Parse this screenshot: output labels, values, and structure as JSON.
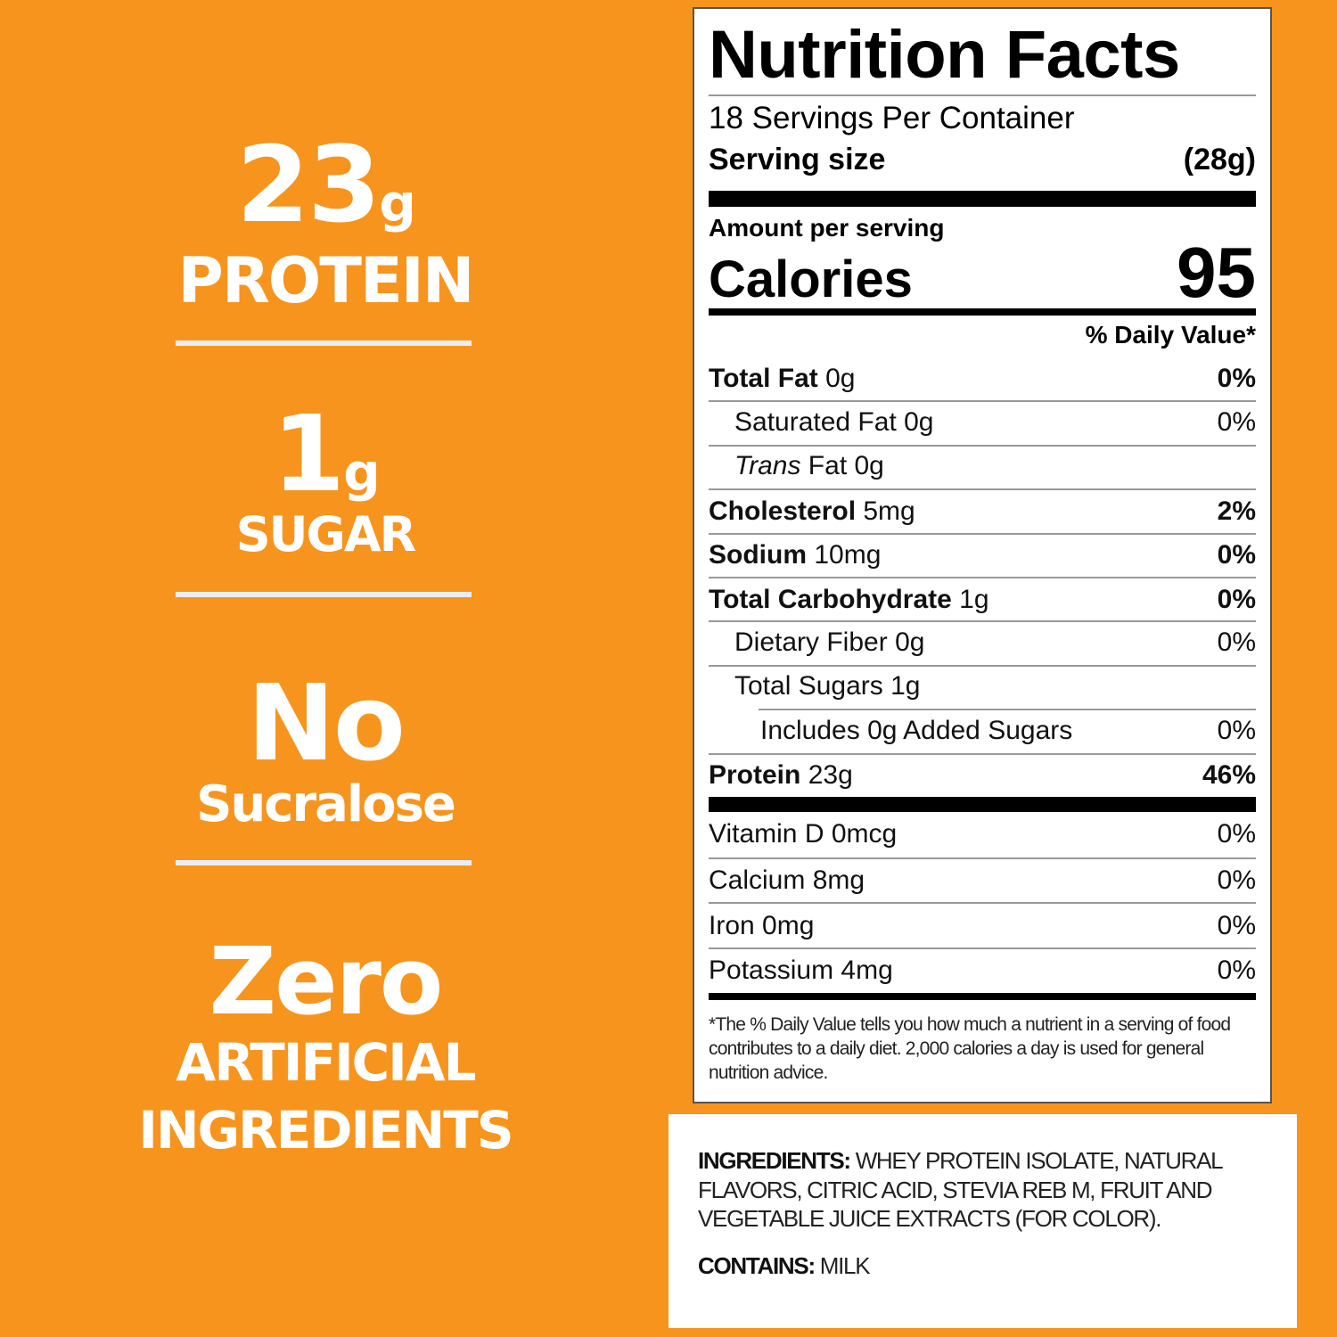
{
  "claims": [
    {
      "big": "23",
      "unit": "g",
      "label": "PROTEIN"
    },
    {
      "big": "1",
      "unit": "g",
      "label": "SUGAR"
    },
    {
      "big": "No",
      "label": "Sucralose"
    },
    {
      "big": "Zero",
      "label": "ARTIFICIAL",
      "label2": "INGREDIENTS"
    }
  ],
  "colors": {
    "background": "#F7941E",
    "text": "#FFFFFF"
  },
  "label": {
    "title": "Nutrition Facts",
    "servings": "18 Servings Per Container",
    "serving_size_label": "Serving size",
    "serving_size": "(28g)",
    "amount_per_serving": "Amount per serving",
    "calories_label": "Calories",
    "calories": "95",
    "dv_header": "% Daily Value*",
    "nutrients": [
      {
        "name": "Total Fat",
        "amount": "0g",
        "dv": "0%",
        "indent": 0,
        "bold": true
      },
      {
        "name": "Saturated Fat",
        "amount": "0g",
        "dv": "0%",
        "indent": 1
      },
      {
        "italic": "Trans",
        "name": " Fat",
        "amount": "0g",
        "dv": "",
        "indent": 1
      },
      {
        "name": "Cholesterol",
        "amount": "5mg",
        "dv": "2%",
        "indent": 0,
        "bold": true
      },
      {
        "name": "Sodium",
        "amount": "10mg",
        "dv": "0%",
        "indent": 0,
        "bold": true
      },
      {
        "name": "Total Carbohydrate",
        "amount": "1g",
        "dv": "0%",
        "indent": 0,
        "bold": true
      },
      {
        "name": "Dietary Fiber",
        "amount": "0g",
        "dv": "0%",
        "indent": 1
      },
      {
        "name": "Total Sugars",
        "amount": "1g",
        "dv": "",
        "indent": 1
      },
      {
        "name": "Includes 0g Added Sugars",
        "amount": "",
        "dv": "0%",
        "indent": 2
      },
      {
        "name": "Protein",
        "amount": "23g",
        "dv": "46%",
        "indent": 0,
        "bold": true
      }
    ],
    "vitamins": [
      {
        "name": "Vitamin D",
        "amount": "0mcg",
        "dv": "0%"
      },
      {
        "name": "Calcium",
        "amount": "8mg",
        "dv": "0%"
      },
      {
        "name": "Iron",
        "amount": "0mg",
        "dv": "0%"
      },
      {
        "name": "Potassium",
        "amount": "4mg",
        "dv": "0%"
      }
    ],
    "footnote": "*The % Daily Value tells you how much a nutrient in a serving of food contributes to a daily diet. 2,000 calories a day is used for general nutrition advice."
  },
  "ingredients": {
    "label": "INGREDIENTS:",
    "text": "WHEY PROTEIN ISOLATE, NATURAL FLAVORS, CITRIC ACID, STEVIA REB M, FRUIT AND VEGETABLE JUICE EXTRACTS (FOR COLOR).",
    "contains_label": "CONTAINS:",
    "contains": "MILK"
  }
}
